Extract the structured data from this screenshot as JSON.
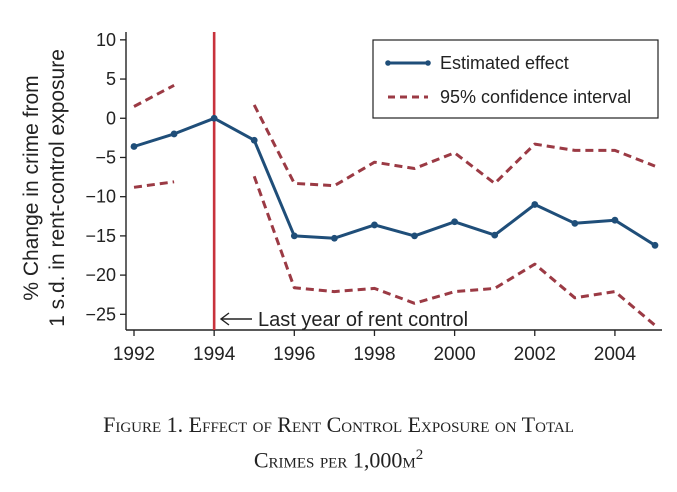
{
  "chart_data": {
    "type": "line",
    "ylabel_line1": "% Change in crime from",
    "ylabel_line2": "1 s.d. in rent-control exposure",
    "xlabel": "",
    "xlim": [
      1992,
      2005
    ],
    "ylim": [
      -27,
      11
    ],
    "x_ticks": [
      "1992",
      "1994",
      "1996",
      "1998",
      "2000",
      "2002",
      "2004"
    ],
    "y_ticks": [
      "10",
      "5",
      "0",
      "−5",
      "−10",
      "−15",
      "−20",
      "−25"
    ],
    "series": [
      {
        "name": "Estimated effect",
        "color": "#1f4e79",
        "style": "solid-markers",
        "segments": [
          [
            [
              1992,
              -3.6
            ],
            [
              1993,
              -2.0
            ],
            [
              1994,
              0.0
            ],
            [
              1995,
              -2.8
            ],
            [
              1996,
              -15.0
            ],
            [
              1997,
              -15.3
            ],
            [
              1998,
              -13.6
            ],
            [
              1999,
              -15.0
            ],
            [
              2000,
              -13.2
            ],
            [
              2001,
              -14.9
            ],
            [
              2002,
              -11.0
            ],
            [
              2003,
              -13.4
            ],
            [
              2004,
              -13.0
            ],
            [
              2005,
              -16.2
            ]
          ]
        ]
      },
      {
        "name": "95% confidence interval",
        "color": "#9b3a44",
        "style": "dashed",
        "segments": [
          [
            [
              1992,
              1.5
            ],
            [
              1993,
              4.2
            ]
          ],
          [
            [
              1992,
              -8.8
            ],
            [
              1993,
              -8.1
            ]
          ],
          [
            [
              1995,
              1.7
            ],
            [
              1996,
              -8.3
            ],
            [
              1997,
              -8.6
            ],
            [
              1998,
              -5.6
            ],
            [
              1999,
              -6.4
            ],
            [
              2000,
              -4.4
            ],
            [
              2001,
              -8.3
            ],
            [
              2002,
              -3.3
            ],
            [
              2003,
              -4.1
            ],
            [
              2004,
              -4.1
            ],
            [
              2005,
              -6.1
            ]
          ],
          [
            [
              1995,
              -7.4
            ],
            [
              1996,
              -21.6
            ],
            [
              1997,
              -22.1
            ],
            [
              1998,
              -21.7
            ],
            [
              1999,
              -23.6
            ],
            [
              2000,
              -22.1
            ],
            [
              2001,
              -21.7
            ],
            [
              2002,
              -18.6
            ],
            [
              2003,
              -22.9
            ],
            [
              2004,
              -22.1
            ],
            [
              2005,
              -26.4
            ]
          ]
        ]
      }
    ],
    "legend": {
      "position": "top-right",
      "items": [
        "Estimated effect",
        "95% confidence interval"
      ]
    },
    "vline": {
      "x": 1994,
      "color": "#c8323c",
      "annotation": "Last year of rent control",
      "annotation_y": -25.7
    }
  },
  "caption": {
    "line1": "Figure 1. Effect of Rent Control Exposure on Total",
    "line2_main": "Crimes per 1,000m",
    "line2_sup": "2"
  }
}
